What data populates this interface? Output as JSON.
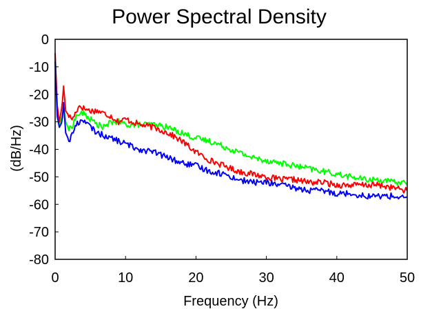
{
  "chart_data": {
    "type": "line",
    "title": "Power Spectral Density",
    "xlabel": "Frequency (Hz)",
    "ylabel": "(dB/Hz)",
    "xlim": [
      0,
      50
    ],
    "ylim": [
      -80,
      0
    ],
    "xticks": [
      0,
      10,
      20,
      30,
      40,
      50
    ],
    "yticks": [
      0,
      -10,
      -20,
      -30,
      -40,
      -50,
      -60,
      -70,
      -80
    ],
    "grid": false,
    "legend": "none",
    "series": [
      {
        "color": "#ff0000",
        "x": [
          0,
          0.3,
          0.6,
          1.0,
          1.2,
          1.5,
          2,
          2.5,
          3,
          3.5,
          4,
          5,
          6,
          7,
          8,
          9,
          10,
          12,
          14,
          16,
          18,
          20,
          22,
          24,
          26,
          28,
          30,
          32,
          34,
          36,
          38,
          40,
          42,
          44,
          46,
          48,
          50
        ],
        "values": [
          -5,
          -24,
          -30,
          -24,
          -17,
          -26,
          -28,
          -29,
          -26,
          -24,
          -25,
          -26,
          -26,
          -27,
          -28,
          -30,
          -29,
          -31,
          -32,
          -34,
          -37,
          -41,
          -44,
          -46,
          -48,
          -49,
          -50,
          -51,
          -51,
          -52,
          -52,
          -53,
          -53,
          -53,
          -53,
          -54,
          -55
        ]
      },
      {
        "color": "#00ff00",
        "x": [
          0,
          0.3,
          0.6,
          1.0,
          1.2,
          1.5,
          2,
          2.5,
          3,
          3.5,
          4,
          5,
          6,
          7,
          8,
          9,
          10,
          12,
          14,
          16,
          18,
          20,
          22,
          24,
          26,
          28,
          30,
          32,
          34,
          36,
          38,
          40,
          42,
          44,
          46,
          48,
          50
        ],
        "values": [
          -6,
          -25,
          -31,
          -28,
          -24,
          -30,
          -33,
          -31,
          -28,
          -27,
          -27,
          -29,
          -31,
          -32,
          -30,
          -30,
          -31,
          -31,
          -31,
          -32,
          -34,
          -36,
          -37,
          -39,
          -41,
          -43,
          -44,
          -45,
          -46,
          -47,
          -48,
          -49,
          -50,
          -51,
          -51,
          -52,
          -52
        ]
      },
      {
        "color": "#0000ff",
        "x": [
          0,
          0.3,
          0.6,
          1.0,
          1.2,
          1.5,
          2,
          2.5,
          3,
          3.5,
          4,
          5,
          6,
          7,
          8,
          9,
          10,
          12,
          14,
          16,
          18,
          20,
          22,
          24,
          26,
          28,
          30,
          32,
          34,
          36,
          38,
          40,
          42,
          44,
          46,
          48,
          50
        ],
        "values": [
          -8,
          -28,
          -32,
          -30,
          -23,
          -34,
          -37,
          -34,
          -31,
          -30,
          -29,
          -32,
          -34,
          -35,
          -36,
          -37,
          -38,
          -40,
          -41,
          -43,
          -45,
          -46,
          -48,
          -49,
          -51,
          -52,
          -52,
          -53,
          -54,
          -55,
          -55,
          -56,
          -56,
          -57,
          -57,
          -57,
          -58
        ]
      }
    ]
  }
}
